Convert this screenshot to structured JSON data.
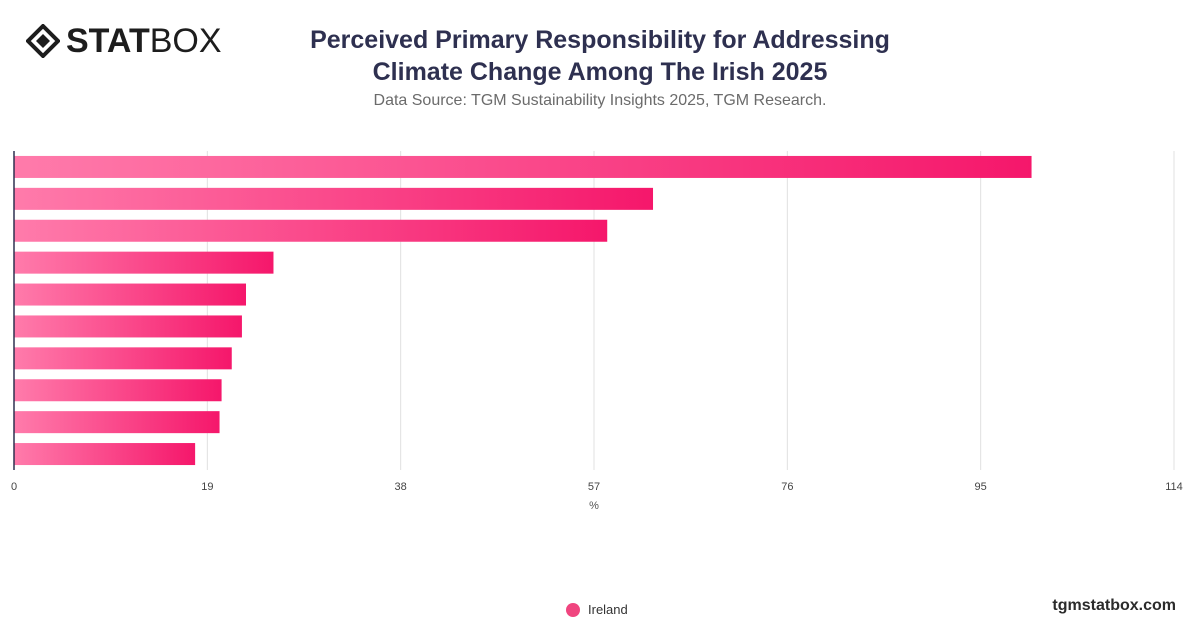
{
  "brand": {
    "bold": "STAT",
    "light": "BOX"
  },
  "title_line1": "Perceived Primary Responsibility for Addressing",
  "title_line2": "Climate Change Among The Irish 2025",
  "subtitle": "Data Source: TGM Sustainability Insights 2025, TGM Research.",
  "footer": "tgmstatbox.com",
  "colors": {
    "bar_start": "#ff7bab",
    "bar_end": "#f5176b",
    "grid": "#e0e0e0",
    "axis": "#2e3050"
  },
  "chart_data": {
    "type": "bar",
    "orientation": "horizontal",
    "xlabel": "%",
    "xlim": [
      0,
      114
    ],
    "xticks": [
      0,
      19,
      38,
      57,
      76,
      95,
      114
    ],
    "grid": true,
    "legend_position": "bottom",
    "series": [
      {
        "name": "Ireland",
        "values": [
          100,
          62.8,
          58.3,
          25.5,
          22.8,
          22.4,
          21.4,
          20.4,
          20.2,
          17.8
        ]
      }
    ]
  }
}
